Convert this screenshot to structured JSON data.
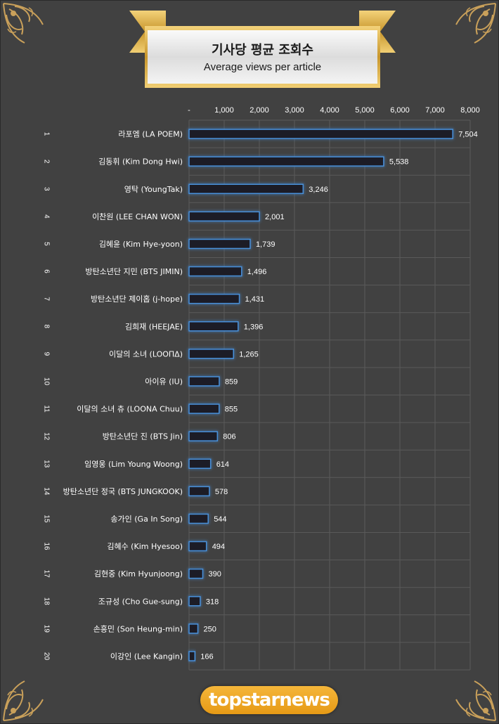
{
  "header": {
    "title_ko": "기사당 평균 조회수",
    "title_en": "Average views per article"
  },
  "logo": {
    "text": "topstarnews"
  },
  "colors": {
    "bar_fill": "#1f1f28",
    "bar_edge": "#4a90d9",
    "bar_glow": "#2f78d6",
    "grid": "#5a5a5a",
    "gold": "#c9a05a"
  },
  "chart_data": {
    "type": "bar",
    "orientation": "horizontal",
    "xlim": [
      0,
      8000
    ],
    "ticks": [
      {
        "value": 0,
        "label": "-"
      },
      {
        "value": 1000,
        "label": "1,000"
      },
      {
        "value": 2000,
        "label": "2,000"
      },
      {
        "value": 3000,
        "label": "3,000"
      },
      {
        "value": 4000,
        "label": "4,000"
      },
      {
        "value": 5000,
        "label": "5,000"
      },
      {
        "value": 6000,
        "label": "6,000"
      },
      {
        "value": 7000,
        "label": "7,000"
      },
      {
        "value": 8000,
        "label": "8,000"
      }
    ],
    "grid": true,
    "axis_position": "top",
    "categories": [
      "라포엠 (LA POEM)",
      "김동휘 (Kim Dong Hwi)",
      "영탁 (YoungTak)",
      "이찬원 (LEE CHAN WON)",
      "김혜윤 (Kim Hye-yoon)",
      "방탄소년단 지민 (BTS JIMIN)",
      "방탄소년단 제이홉 (j-hope)",
      "김희재 (HEEJAE)",
      "이달의 소녀 (LOOΠΔ)",
      "아이유 (IU)",
      "이달의 소녀 츄 (LOONA Chuu)",
      "방탄소년단 진 (BTS Jin)",
      "임영웅 (Lim Young Woong)",
      "방탄소년단 정국 (BTS JUNGKOOK)",
      "송가인 (Ga In Song)",
      "김혜수 (Kim Hyesoo)",
      "김현중 (Kim Hyunjoong)",
      "조규성 (Cho Gue-sung)",
      "손흥민 (Son Heung-min)",
      "이강인 (Lee Kangin)"
    ],
    "ranks": [
      "1",
      "2",
      "3",
      "4",
      "5",
      "6",
      "7",
      "8",
      "9",
      "10",
      "11",
      "12",
      "13",
      "14",
      "15",
      "16",
      "17",
      "18",
      "19",
      "20"
    ],
    "values": [
      7504,
      5538,
      3246,
      2001,
      1739,
      1496,
      1431,
      1396,
      1265,
      859,
      855,
      806,
      614,
      578,
      544,
      494,
      390,
      318,
      250,
      166
    ],
    "value_labels": [
      "7,504",
      "5,538",
      "3,246",
      "2,001",
      "1,739",
      "1,496",
      "1,431",
      "1,396",
      "1,265",
      "859",
      "855",
      "806",
      "614",
      "578",
      "544",
      "494",
      "390",
      "318",
      "250",
      "166"
    ]
  }
}
